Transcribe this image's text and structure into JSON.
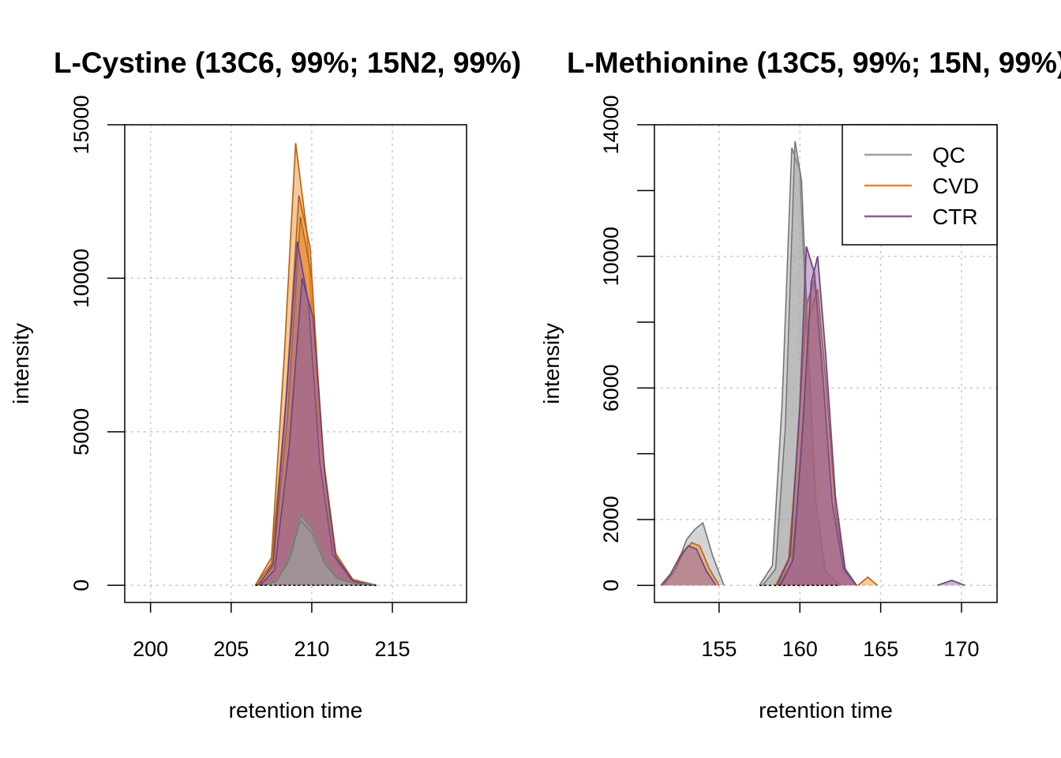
{
  "chart_data": [
    {
      "type": "area",
      "title": "L-Cystine (13C6, 99%; 15N2, 99%)",
      "xlabel": "retention time",
      "ylabel": "intensity",
      "xlim": [
        198.4,
        219.6
      ],
      "ylim": [
        -560,
        15000
      ],
      "x_ticks": [
        200,
        205,
        210,
        215
      ],
      "y_ticks": [
        0,
        5000,
        10000,
        15000
      ],
      "grid": true,
      "legend": null,
      "groups": [
        {
          "name": "QC",
          "color": "#a0a0a0"
        },
        {
          "name": "CVD",
          "color": "#e8872a"
        },
        {
          "name": "CTR",
          "color": "#8e5a9e"
        }
      ],
      "series": [
        {
          "group": "CVD",
          "x": [
            206.5,
            207.5,
            208.3,
            209.0,
            209.7,
            210.5,
            211.3,
            212.5,
            214.0
          ],
          "y": [
            0,
            900,
            7500,
            14400,
            11500,
            5000,
            1200,
            200,
            0
          ]
        },
        {
          "group": "CVD",
          "x": [
            206.5,
            207.5,
            208.4,
            209.2,
            209.9,
            210.6,
            211.4,
            212.5,
            214.0
          ],
          "y": [
            0,
            700,
            6000,
            12700,
            11000,
            4700,
            1100,
            180,
            0
          ]
        },
        {
          "group": "CVD",
          "x": [
            206.6,
            207.6,
            208.5,
            209.3,
            210.0,
            210.7,
            211.5,
            212.6,
            214.0
          ],
          "y": [
            0,
            600,
            5500,
            12000,
            10000,
            4200,
            1000,
            150,
            0
          ]
        },
        {
          "group": "CTR",
          "x": [
            206.7,
            207.6,
            208.4,
            209.1,
            209.8,
            210.5,
            211.3,
            212.5,
            214.0
          ],
          "y": [
            0,
            700,
            6000,
            11200,
            9200,
            4000,
            1000,
            150,
            0
          ]
        },
        {
          "group": "CTR",
          "x": [
            206.8,
            207.7,
            208.6,
            209.4,
            210.1,
            210.8,
            211.5,
            212.6,
            214.0
          ],
          "y": [
            0,
            500,
            4500,
            10000,
            8700,
            3700,
            900,
            120,
            0
          ]
        },
        {
          "group": "QC",
          "x": [
            206.9,
            207.8,
            208.6,
            209.3,
            210.0,
            210.8,
            211.6,
            212.8,
            214.0
          ],
          "y": [
            0,
            150,
            900,
            2300,
            1900,
            800,
            250,
            50,
            0
          ]
        },
        {
          "group": "QC",
          "x": [
            206.9,
            207.8,
            208.6,
            209.3,
            210.0,
            210.8,
            211.6,
            212.8,
            214.0
          ],
          "y": [
            0,
            120,
            800,
            2100,
            1700,
            700,
            200,
            40,
            0
          ]
        }
      ]
    },
    {
      "type": "area",
      "title": "L-Methionine (13C5, 99%; 15N, 99%)",
      "xlabel": "retention time",
      "ylabel": "intensity",
      "xlim": [
        151.0,
        172.2
      ],
      "ylim": [
        -520,
        14000
      ],
      "x_ticks": [
        155,
        160,
        165,
        170
      ],
      "y_ticks": [
        0,
        2000,
        6000,
        10000,
        14000
      ],
      "grid": true,
      "legend": {
        "placement": "top-right",
        "entries": [
          {
            "label": "QC",
            "color": "#a0a0a0"
          },
          {
            "label": "CVD",
            "color": "#e8872a"
          },
          {
            "label": "CTR",
            "color": "#8e5a9e"
          }
        ]
      },
      "series": [
        {
          "group": "QC",
          "x": [
            157.5,
            158.3,
            158.9,
            159.5,
            160.0,
            160.4,
            160.9,
            161.5,
            162.5
          ],
          "y": [
            0,
            600,
            5500,
            13300,
            12600,
            8000,
            2800,
            500,
            0
          ]
        },
        {
          "group": "QC",
          "x": [
            157.7,
            158.5,
            159.1,
            159.7,
            160.1,
            160.5,
            161.0,
            161.6,
            162.5
          ],
          "y": [
            0,
            500,
            4800,
            13500,
            12300,
            7500,
            2500,
            400,
            0
          ]
        },
        {
          "group": "CVD",
          "x": [
            158.5,
            159.3,
            159.9,
            160.4,
            160.9,
            161.4,
            162.0,
            162.7,
            163.5
          ],
          "y": [
            0,
            800,
            4500,
            8500,
            9300,
            6500,
            2500,
            500,
            0
          ]
        },
        {
          "group": "CVD",
          "x": [
            158.7,
            159.5,
            160.1,
            160.6,
            161.1,
            161.6,
            162.2,
            162.8,
            163.5
          ],
          "y": [
            0,
            700,
            4000,
            8200,
            9000,
            6200,
            2300,
            400,
            0
          ]
        },
        {
          "group": "CTR",
          "x": [
            158.6,
            159.4,
            160.0,
            160.4,
            160.9,
            161.4,
            162.0,
            162.7,
            163.5
          ],
          "y": [
            0,
            900,
            5500,
            10300,
            9500,
            6500,
            2500,
            500,
            0
          ]
        },
        {
          "group": "CTR",
          "x": [
            158.8,
            159.6,
            160.2,
            160.7,
            161.1,
            161.6,
            162.2,
            162.8,
            163.5
          ],
          "y": [
            0,
            800,
            5000,
            9200,
            10000,
            7000,
            2700,
            500,
            0
          ]
        },
        {
          "group": "QC",
          "x": [
            151.6,
            152.3,
            153.0,
            153.5,
            154.0,
            154.6,
            155.3
          ],
          "y": [
            0,
            500,
            1400,
            1700,
            1900,
            900,
            0
          ]
        },
        {
          "group": "CVD",
          "x": [
            151.5,
            152.2,
            152.8,
            153.3,
            153.8,
            154.4,
            155.0
          ],
          "y": [
            0,
            400,
            1000,
            1300,
            1200,
            500,
            0
          ]
        },
        {
          "group": "CTR",
          "x": [
            151.4,
            152.0,
            152.6,
            153.1,
            153.6,
            154.2,
            154.8
          ],
          "y": [
            0,
            350,
            900,
            1200,
            1100,
            450,
            0
          ]
        },
        {
          "group": "CVD",
          "x": [
            163.6,
            164.2,
            164.8
          ],
          "y": [
            0,
            250,
            0
          ]
        },
        {
          "group": "CTR",
          "x": [
            168.5,
            169.4,
            170.2
          ],
          "y": [
            0,
            150,
            0
          ]
        }
      ]
    }
  ]
}
